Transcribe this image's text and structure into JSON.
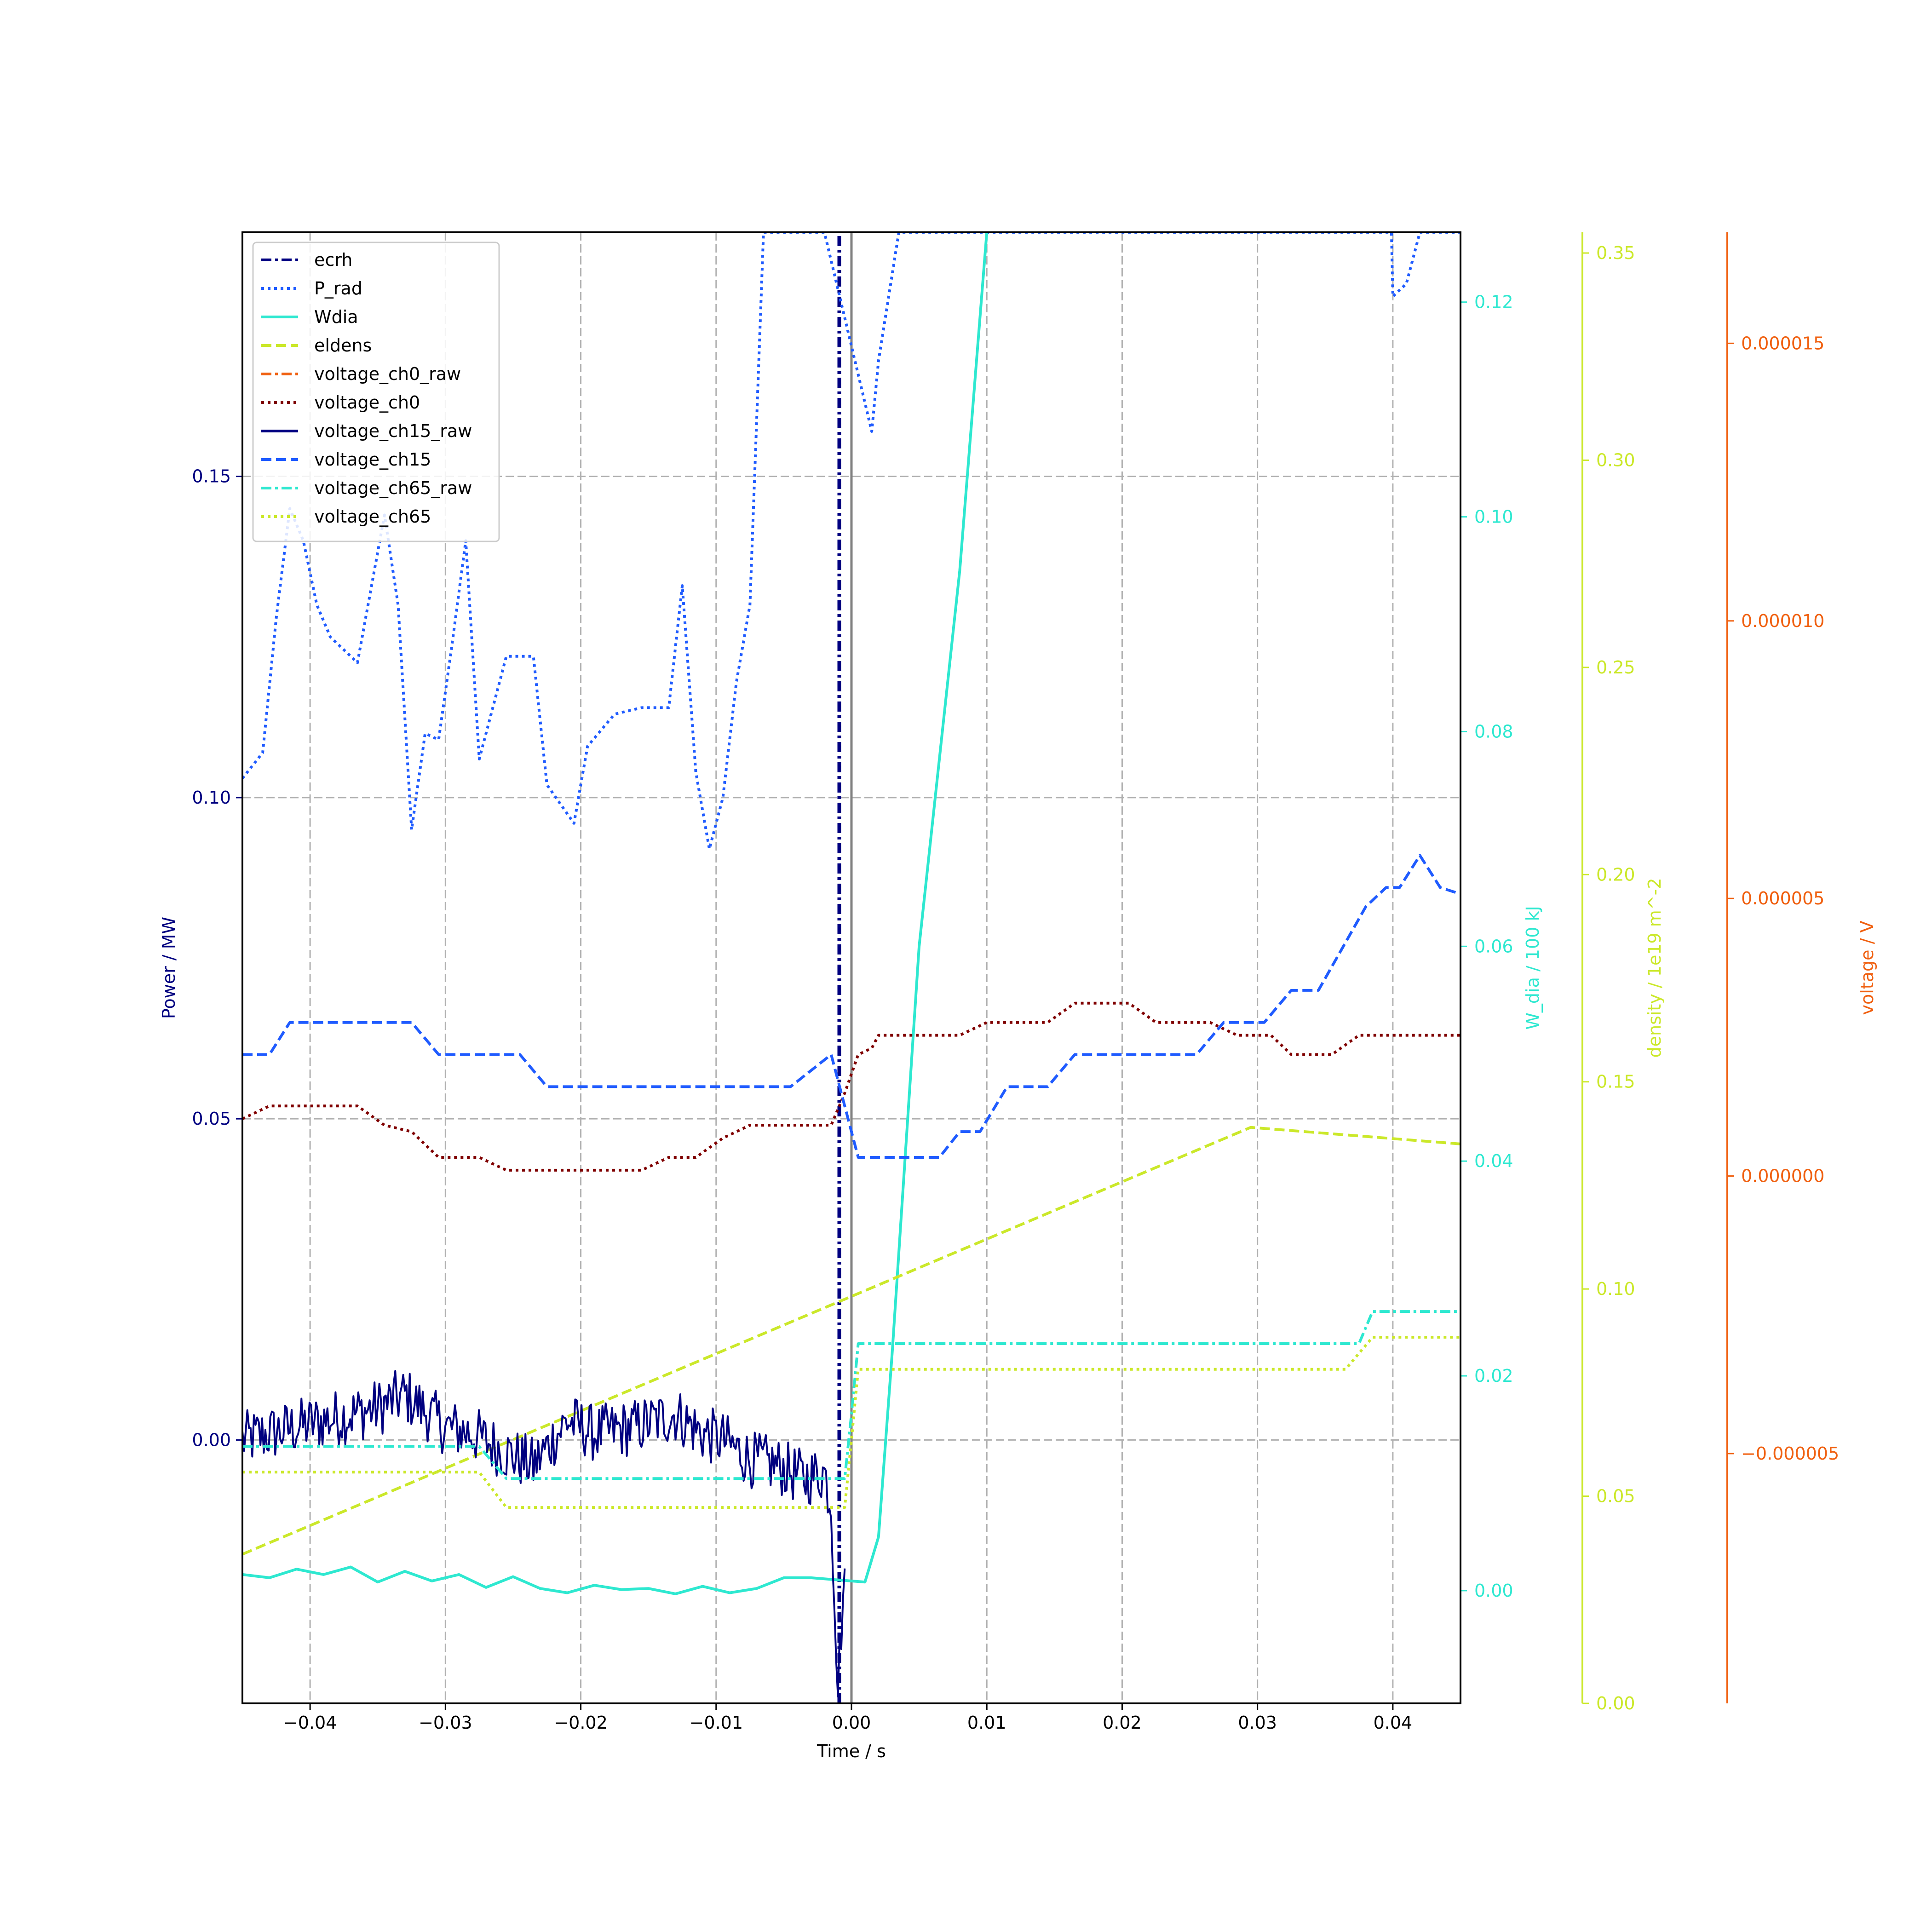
{
  "chart_data": {
    "type": "line",
    "xlabel": "Time / s",
    "xlim": [
      -0.045,
      0.045
    ],
    "xticks": [
      -0.04,
      -0.03,
      -0.02,
      -0.01,
      0.0,
      0.01,
      0.02,
      0.03,
      0.04
    ],
    "xtick_labels": [
      "−0.04",
      "−0.03",
      "−0.02",
      "−0.01",
      "0.00",
      "0.01",
      "0.02",
      "0.03",
      "0.04"
    ],
    "grid": true,
    "legend_placement": "upper-left",
    "reference_line_x": 0.0,
    "axes": [
      {
        "id": "power",
        "label": "Power / MW",
        "side": "left",
        "color": "#000080",
        "ylim": [
          -0.041,
          0.188
        ],
        "ticks": [
          0.0,
          0.05,
          0.1,
          0.15
        ],
        "tick_labels": [
          "0.00",
          "0.05",
          "0.10",
          "0.15"
        ]
      },
      {
        "id": "wdia",
        "label": "W_dia / 100 kJ",
        "side": "right",
        "color": "#2ee8d0",
        "ylim": [
          -0.0105,
          0.1265
        ],
        "ticks": [
          0.0,
          0.02,
          0.04,
          0.06,
          0.08,
          0.1,
          0.12
        ],
        "tick_labels": [
          "0.00",
          "0.02",
          "0.04",
          "0.06",
          "0.08",
          "0.10",
          "0.12"
        ]
      },
      {
        "id": "density",
        "label": "density / 1e19 m^-2",
        "side": "right",
        "color": "#cbe82a",
        "ylim": [
          0.0,
          0.355
        ],
        "ticks": [
          0.0,
          0.05,
          0.1,
          0.15,
          0.2,
          0.25,
          0.3,
          0.35
        ],
        "tick_labels": [
          "0.00",
          "0.05",
          "0.10",
          "0.15",
          "0.20",
          "0.25",
          "0.30",
          "0.35"
        ]
      },
      {
        "id": "voltage",
        "label": "voltage / V",
        "side": "right",
        "color": "#f06010",
        "ylim": [
          -9.5e-06,
          1.7e-05
        ],
        "ticks": [
          -5e-06,
          0.0,
          5e-06,
          1e-05,
          1.5e-05
        ],
        "tick_labels": [
          "−0.000005",
          "0.000000",
          "0.000005",
          "0.000010",
          "0.000015"
        ]
      }
    ],
    "series": [
      {
        "name": "ecrh",
        "axis": "power",
        "color": "#000080",
        "style": "dashdot",
        "x": [
          -0.0009,
          -0.0009,
          -0.0009
        ],
        "y": [
          -0.041,
          0.0,
          0.188
        ]
      },
      {
        "name": "P_rad",
        "axis": "power",
        "color": "#1f5bff",
        "style": "dotted",
        "x": [
          -0.045,
          -0.0435,
          -0.0425,
          -0.0415,
          -0.0405,
          -0.0395,
          -0.0385,
          -0.0365,
          -0.0345,
          -0.0335,
          -0.0325,
          -0.0315,
          -0.0305,
          -0.0295,
          -0.0285,
          -0.0275,
          -0.0255,
          -0.0235,
          -0.0225,
          -0.0205,
          -0.0195,
          -0.0175,
          -0.0155,
          -0.0135,
          -0.0125,
          -0.0115,
          -0.0105,
          -0.0095,
          -0.0085,
          -0.0075,
          -0.0065,
          -0.0055,
          -0.0045,
          -0.0035,
          -0.003,
          -0.0028,
          -0.002,
          0.0015,
          0.002,
          0.0035,
          0.004,
          0.0399,
          0.04,
          0.041,
          0.042,
          0.045
        ],
        "y": [
          0.103,
          0.107,
          0.128,
          0.145,
          0.14,
          0.13,
          0.125,
          0.121,
          0.144,
          0.13,
          0.095,
          0.11,
          0.109,
          0.124,
          0.14,
          0.106,
          0.122,
          0.122,
          0.102,
          0.096,
          0.108,
          0.113,
          0.114,
          0.114,
          0.133,
          0.104,
          0.092,
          0.1,
          0.118,
          0.13,
          0.188,
          0.188,
          0.188,
          0.188,
          0.188,
          0.188,
          0.188,
          0.157,
          0.168,
          0.188,
          0.188,
          0.188,
          0.178,
          0.18,
          0.188,
          0.188
        ]
      },
      {
        "name": "Wdia",
        "axis": "wdia",
        "color": "#2ee8d0",
        "style": "solid",
        "x": [
          -0.045,
          -0.043,
          -0.041,
          -0.039,
          -0.037,
          -0.035,
          -0.033,
          -0.031,
          -0.029,
          -0.027,
          -0.025,
          -0.023,
          -0.021,
          -0.019,
          -0.017,
          -0.015,
          -0.013,
          -0.011,
          -0.009,
          -0.007,
          -0.005,
          -0.003,
          -0.001,
          0.001,
          0.002,
          0.003,
          0.005,
          0.008,
          0.01
        ],
        "y": [
          0.0015,
          0.0012,
          0.002,
          0.0015,
          0.0022,
          0.0008,
          0.0018,
          0.0009,
          0.0015,
          0.0003,
          0.0013,
          0.0002,
          -0.0002,
          0.0005,
          0.0001,
          0.0002,
          -0.0003,
          0.0004,
          -0.0002,
          0.0002,
          0.0012,
          0.0012,
          0.001,
          0.0008,
          0.005,
          0.022,
          0.06,
          0.095,
          0.1265
        ]
      },
      {
        "name": "eldens",
        "axis": "density",
        "color": "#cbe82a",
        "style": "dashed",
        "x": [
          -0.045,
          0.0295,
          0.045
        ],
        "y": [
          0.036,
          0.139,
          0.135
        ]
      },
      {
        "name": "voltage_ch0_raw",
        "axis": "voltage",
        "color": "#f06010",
        "style": "dashdot",
        "x": [],
        "y": []
      },
      {
        "name": "voltage_ch0",
        "axis": "power",
        "color": "#800000",
        "style": "dotted",
        "x": [
          -0.045,
          -0.043,
          -0.0365,
          -0.0345,
          -0.0325,
          -0.0305,
          -0.0275,
          -0.0255,
          -0.0155,
          -0.0135,
          -0.0115,
          -0.0095,
          -0.0075,
          -0.0015,
          -0.0005,
          0.0005,
          0.0015,
          0.002,
          0.008,
          0.01,
          0.0145,
          0.0165,
          0.0205,
          0.0225,
          0.0265,
          0.0285,
          0.031,
          0.0325,
          0.0355,
          0.0375,
          0.045
        ],
        "y": [
          0.05,
          0.052,
          0.052,
          0.049,
          0.048,
          0.044,
          0.044,
          0.042,
          0.042,
          0.044,
          0.044,
          0.047,
          0.049,
          0.049,
          0.054,
          0.06,
          0.061,
          0.063,
          0.063,
          0.065,
          0.065,
          0.068,
          0.068,
          0.065,
          0.065,
          0.063,
          0.063,
          0.06,
          0.06,
          0.063,
          0.063
        ]
      },
      {
        "name": "voltage_ch15_raw",
        "axis": "power",
        "color": "#000080",
        "style": "solid",
        "noisy": true,
        "x": [
          -0.045,
          -0.041,
          -0.035,
          -0.033,
          -0.03,
          -0.028,
          -0.0255,
          -0.0235,
          -0.021,
          -0.019,
          -0.016,
          -0.013,
          -0.011,
          -0.0095,
          -0.0075,
          -0.0055,
          -0.0035,
          -0.002,
          -0.0015,
          -0.001,
          -0.0005
        ],
        "y": [
          0.0,
          0.002,
          0.005,
          0.007,
          0.002,
          0.001,
          -0.002,
          -0.004,
          0.003,
          0.001,
          0.002,
          0.004,
          0.001,
          0.0,
          -0.003,
          -0.004,
          -0.006,
          -0.005,
          -0.01,
          -0.038,
          -0.02
        ]
      },
      {
        "name": "voltage_ch15",
        "axis": "power",
        "color": "#1f5bff",
        "style": "dashed",
        "x": [
          -0.045,
          -0.043,
          -0.0415,
          -0.0325,
          -0.0305,
          -0.0245,
          -0.0225,
          -0.0065,
          -0.0045,
          -0.0015,
          0.0005,
          0.0065,
          0.008,
          0.0095,
          0.0115,
          0.0145,
          0.0165,
          0.0255,
          0.0275,
          0.0305,
          0.0325,
          0.0345,
          0.038,
          0.0395,
          0.0405,
          0.042,
          0.0435,
          0.045
        ],
        "y": [
          0.06,
          0.06,
          0.065,
          0.065,
          0.06,
          0.06,
          0.055,
          0.055,
          0.055,
          0.06,
          0.044,
          0.044,
          0.048,
          0.048,
          0.055,
          0.055,
          0.06,
          0.06,
          0.065,
          0.065,
          0.07,
          0.07,
          0.083,
          0.086,
          0.086,
          0.091,
          0.086,
          0.085
        ]
      },
      {
        "name": "voltage_ch65_raw",
        "axis": "power",
        "color": "#2ee8d0",
        "style": "dashdot",
        "x": [
          -0.045,
          -0.0275,
          -0.0255,
          -0.0015,
          -0.0005,
          0.0,
          0.0005,
          0.0375,
          0.0385,
          0.045
        ],
        "y": [
          -0.001,
          -0.001,
          -0.006,
          -0.006,
          -0.006,
          0.004,
          0.015,
          0.015,
          0.02,
          0.02
        ],
        "_comment": ""
      },
      {
        "name": "voltage_ch65",
        "axis": "power",
        "color": "#cbe82a",
        "style": "dotted",
        "x": [
          -0.045,
          -0.0275,
          -0.0255,
          -0.0015,
          -0.0005,
          0.0,
          0.0005,
          0.0365,
          0.0385,
          0.045
        ],
        "y": [
          -0.005,
          -0.005,
          -0.0105,
          -0.0105,
          -0.0105,
          0.0,
          0.011,
          0.011,
          0.016,
          0.016
        ]
      }
    ]
  }
}
